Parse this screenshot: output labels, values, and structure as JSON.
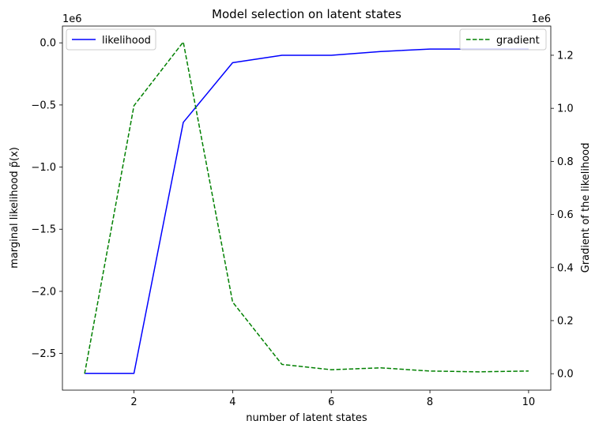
{
  "chart_data": {
    "type": "line",
    "title": "Model selection on latent states",
    "xlabel": "number of latent states",
    "ylabel_left": "marginal likelihood p̃(x)",
    "ylabel_right": "Gradient of the likelihood",
    "left_offset_label": "1e6",
    "right_offset_label": "1e6",
    "x": [
      1,
      2,
      3,
      4,
      5,
      6,
      7,
      8,
      9,
      10
    ],
    "xlim": [
      0.55,
      10.45
    ],
    "xticks": [
      2,
      4,
      6,
      8,
      10
    ],
    "xtick_labels": [
      "2",
      "4",
      "6",
      "8",
      "10"
    ],
    "ylim_left": [
      -2.795,
      0.135
    ],
    "yticks_left": [
      0.0,
      -0.5,
      -1.0,
      -1.5,
      -2.0,
      -2.5
    ],
    "ytick_labels_left": [
      "0.0",
      "−0.5",
      "−1.0",
      "−1.5",
      "−2.0",
      "−2.5"
    ],
    "ylim_right": [
      -0.062,
      1.31
    ],
    "yticks_right": [
      0.0,
      0.2,
      0.4,
      0.6,
      0.8,
      1.0,
      1.2
    ],
    "ytick_labels_right": [
      "0.0",
      "0.2",
      "0.4",
      "0.6",
      "0.8",
      "1.0",
      "1.2"
    ],
    "series": [
      {
        "name": "likelihood",
        "axis": "left",
        "color": "#0000ff",
        "linestyle": "solid",
        "values": [
          -2.66,
          -2.66,
          -0.64,
          -0.16,
          -0.1,
          -0.1,
          -0.07,
          -0.05,
          -0.05,
          -0.05
        ]
      },
      {
        "name": "gradient",
        "axis": "right",
        "color": "#008000",
        "linestyle": "dashed",
        "values": [
          0.0,
          1.01,
          1.25,
          0.27,
          0.035,
          0.015,
          0.022,
          0.01,
          0.007,
          0.01
        ]
      }
    ],
    "legend_left": {
      "placement": "upper left",
      "label": "likelihood"
    },
    "legend_right": {
      "placement": "upper right",
      "label": "gradient"
    },
    "grid": false
  }
}
